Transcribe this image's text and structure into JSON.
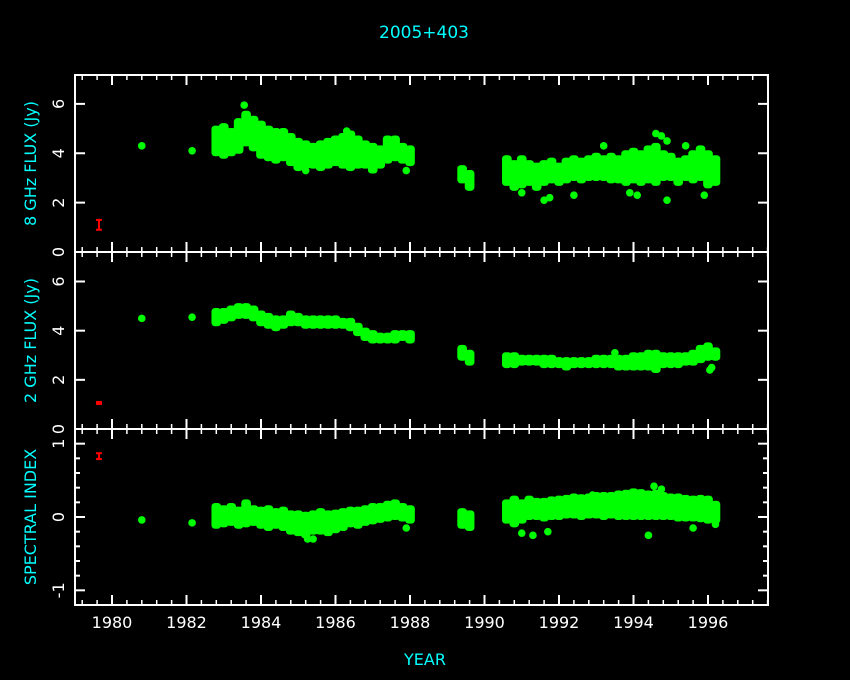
{
  "colors": {
    "background": "#000000",
    "axes": "#ffffff",
    "labels": "#00ffff",
    "data": "#00ff00",
    "error_bar": "#ff0000"
  },
  "chart_data": [
    {
      "type": "scatter",
      "title": "2005+403",
      "xlabel": "YEAR",
      "ylabel": "8 GHz FLUX (Jy)",
      "xlim": [
        1979.0,
        1997.6
      ],
      "ylim": [
        0,
        7.17
      ],
      "xticks": [
        "1980",
        "1982",
        "1984",
        "1986",
        "1988",
        "1990",
        "1992",
        "1994",
        "1996"
      ],
      "yticks": [
        "0",
        "2",
        "4",
        "6"
      ],
      "error_bar": {
        "x": 1979.65,
        "y": 1.1,
        "err": 0.2
      },
      "points": [
        [
          1980.8,
          4.3
        ],
        [
          1982.15,
          4.1
        ],
        [
          1983.55,
          5.95
        ],
        [
          1986.3,
          4.9
        ],
        [
          1987.9,
          3.3
        ],
        [
          1985.2,
          3.3
        ],
        [
          1991.0,
          2.4
        ],
        [
          1991.6,
          2.1
        ],
        [
          1991.75,
          2.2
        ],
        [
          1992.4,
          2.3
        ],
        [
          1993.2,
          4.3
        ],
        [
          1994.1,
          2.3
        ],
        [
          1994.6,
          4.8
        ],
        [
          1994.75,
          4.7
        ],
        [
          1994.9,
          4.5
        ],
        [
          1995.4,
          4.3
        ],
        [
          1995.9,
          2.3
        ],
        [
          1993.9,
          2.4
        ],
        [
          1994.9,
          2.1
        ]
      ],
      "bands": [
        [
          1982.8,
          4.0,
          5.0
        ],
        [
          1983.0,
          3.9,
          5.1
        ],
        [
          1983.2,
          4.0,
          4.9
        ],
        [
          1983.4,
          4.1,
          5.3
        ],
        [
          1983.6,
          4.4,
          5.6
        ],
        [
          1983.8,
          4.2,
          5.4
        ],
        [
          1984.0,
          3.9,
          5.2
        ],
        [
          1984.2,
          3.8,
          5.0
        ],
        [
          1984.4,
          3.7,
          4.9
        ],
        [
          1984.6,
          3.8,
          4.9
        ],
        [
          1984.8,
          3.6,
          4.7
        ],
        [
          1985.0,
          3.4,
          4.5
        ],
        [
          1985.2,
          3.5,
          4.4
        ],
        [
          1985.4,
          3.5,
          4.3
        ],
        [
          1985.6,
          3.4,
          4.4
        ],
        [
          1985.8,
          3.5,
          4.5
        ],
        [
          1986.0,
          3.6,
          4.6
        ],
        [
          1986.2,
          3.5,
          4.7
        ],
        [
          1986.4,
          3.4,
          4.8
        ],
        [
          1986.6,
          3.5,
          4.6
        ],
        [
          1986.8,
          3.5,
          4.4
        ],
        [
          1987.0,
          3.3,
          4.3
        ],
        [
          1987.2,
          3.5,
          4.2
        ],
        [
          1987.4,
          3.7,
          4.6
        ],
        [
          1987.6,
          3.8,
          4.6
        ],
        [
          1987.8,
          3.7,
          4.3
        ],
        [
          1988.0,
          3.6,
          4.2
        ],
        [
          1989.4,
          2.9,
          3.4
        ],
        [
          1989.6,
          2.6,
          3.2
        ],
        [
          1990.6,
          2.8,
          3.8
        ],
        [
          1990.8,
          2.6,
          3.6
        ],
        [
          1991.0,
          2.7,
          3.8
        ],
        [
          1991.2,
          2.8,
          3.6
        ],
        [
          1991.4,
          2.6,
          3.5
        ],
        [
          1991.6,
          2.8,
          3.6
        ],
        [
          1991.8,
          2.9,
          3.7
        ],
        [
          1992.0,
          2.8,
          3.5
        ],
        [
          1992.2,
          2.9,
          3.7
        ],
        [
          1992.4,
          3.0,
          3.8
        ],
        [
          1992.6,
          2.9,
          3.7
        ],
        [
          1992.8,
          3.0,
          3.8
        ],
        [
          1993.0,
          3.0,
          3.9
        ],
        [
          1993.2,
          3.0,
          3.8
        ],
        [
          1993.4,
          2.9,
          3.9
        ],
        [
          1993.6,
          2.9,
          3.8
        ],
        [
          1993.8,
          2.8,
          4.0
        ],
        [
          1994.0,
          2.9,
          4.1
        ],
        [
          1994.2,
          2.8,
          4.0
        ],
        [
          1994.4,
          2.9,
          4.2
        ],
        [
          1994.6,
          2.8,
          4.3
        ],
        [
          1994.8,
          3.0,
          4.0
        ],
        [
          1995.0,
          3.0,
          3.9
        ],
        [
          1995.2,
          2.8,
          3.7
        ],
        [
          1995.4,
          3.0,
          3.8
        ],
        [
          1995.6,
          2.9,
          4.0
        ],
        [
          1995.8,
          3.0,
          4.2
        ],
        [
          1996.0,
          2.7,
          4.0
        ],
        [
          1996.2,
          2.8,
          3.8
        ]
      ]
    },
    {
      "type": "scatter",
      "ylabel": "2 GHz FLUX (Jy)",
      "xlim": [
        1979.0,
        1997.6
      ],
      "ylim": [
        0,
        7.2
      ],
      "yticks": [
        "0",
        "2",
        "4",
        "6"
      ],
      "error_bar": {
        "x": 1979.65,
        "y": 1.06,
        "err": 0.04
      },
      "points": [
        [
          1980.8,
          4.5
        ],
        [
          1982.15,
          4.55
        ],
        [
          1993.5,
          3.1
        ],
        [
          1996.1,
          2.5
        ],
        [
          1996.05,
          2.4
        ]
      ],
      "bands": [
        [
          1982.8,
          4.3,
          4.8
        ],
        [
          1983.0,
          4.4,
          4.8
        ],
        [
          1983.2,
          4.5,
          4.9
        ],
        [
          1983.4,
          4.6,
          5.0
        ],
        [
          1983.6,
          4.6,
          5.0
        ],
        [
          1983.8,
          4.5,
          4.9
        ],
        [
          1984.0,
          4.3,
          4.7
        ],
        [
          1984.2,
          4.2,
          4.6
        ],
        [
          1984.4,
          4.1,
          4.5
        ],
        [
          1984.6,
          4.2,
          4.5
        ],
        [
          1984.8,
          4.3,
          4.7
        ],
        [
          1985.0,
          4.3,
          4.6
        ],
        [
          1985.2,
          4.2,
          4.5
        ],
        [
          1985.4,
          4.2,
          4.5
        ],
        [
          1985.6,
          4.2,
          4.5
        ],
        [
          1985.8,
          4.2,
          4.5
        ],
        [
          1986.0,
          4.2,
          4.5
        ],
        [
          1986.2,
          4.2,
          4.4
        ],
        [
          1986.4,
          4.1,
          4.4
        ],
        [
          1986.6,
          3.9,
          4.2
        ],
        [
          1986.8,
          3.7,
          4.0
        ],
        [
          1987.0,
          3.6,
          3.9
        ],
        [
          1987.2,
          3.6,
          3.8
        ],
        [
          1987.4,
          3.6,
          3.8
        ],
        [
          1987.6,
          3.6,
          3.9
        ],
        [
          1987.8,
          3.7,
          3.9
        ],
        [
          1988.0,
          3.6,
          3.9
        ],
        [
          1989.4,
          2.9,
          3.3
        ],
        [
          1989.6,
          2.7,
          3.1
        ],
        [
          1990.6,
          2.6,
          3.0
        ],
        [
          1990.8,
          2.6,
          3.0
        ],
        [
          1991.0,
          2.7,
          2.9
        ],
        [
          1991.2,
          2.7,
          2.9
        ],
        [
          1991.4,
          2.7,
          2.9
        ],
        [
          1991.6,
          2.6,
          2.9
        ],
        [
          1991.8,
          2.6,
          2.9
        ],
        [
          1992.0,
          2.6,
          2.8
        ],
        [
          1992.2,
          2.5,
          2.8
        ],
        [
          1992.4,
          2.6,
          2.8
        ],
        [
          1992.6,
          2.6,
          2.8
        ],
        [
          1992.8,
          2.6,
          2.8
        ],
        [
          1993.0,
          2.6,
          2.9
        ],
        [
          1993.2,
          2.6,
          2.9
        ],
        [
          1993.4,
          2.6,
          2.9
        ],
        [
          1993.6,
          2.5,
          2.9
        ],
        [
          1993.8,
          2.5,
          2.9
        ],
        [
          1994.0,
          2.5,
          3.0
        ],
        [
          1994.2,
          2.5,
          3.0
        ],
        [
          1994.4,
          2.5,
          3.1
        ],
        [
          1994.6,
          2.4,
          3.1
        ],
        [
          1994.8,
          2.6,
          3.0
        ],
        [
          1995.0,
          2.6,
          3.0
        ],
        [
          1995.2,
          2.6,
          3.0
        ],
        [
          1995.4,
          2.7,
          3.0
        ],
        [
          1995.6,
          2.7,
          3.1
        ],
        [
          1995.8,
          2.8,
          3.3
        ],
        [
          1996.0,
          2.9,
          3.4
        ],
        [
          1996.2,
          2.9,
          3.2
        ]
      ]
    },
    {
      "type": "scatter",
      "ylabel": "SPECTRAL  INDEX",
      "xlim": [
        1979.0,
        1997.6
      ],
      "ylim": [
        -1.2,
        1.2
      ],
      "yticks": [
        "-1",
        "0",
        "1"
      ],
      "error_bar": {
        "x": 1979.65,
        "y": 0.83,
        "err": 0.04
      },
      "points": [
        [
          1980.8,
          -0.04
        ],
        [
          1982.15,
          -0.08
        ],
        [
          1985.25,
          -0.3
        ],
        [
          1985.4,
          -0.3
        ],
        [
          1987.9,
          -0.15
        ],
        [
          1991.0,
          -0.22
        ],
        [
          1991.3,
          -0.25
        ],
        [
          1991.7,
          -0.2
        ],
        [
          1994.4,
          -0.25
        ],
        [
          1994.55,
          0.42
        ],
        [
          1994.75,
          0.38
        ],
        [
          1992.9,
          0.3
        ],
        [
          1995.6,
          -0.15
        ],
        [
          1996.2,
          -0.1
        ]
      ],
      "bands": [
        [
          1982.8,
          -0.12,
          0.15
        ],
        [
          1983.0,
          -0.1,
          0.12
        ],
        [
          1983.2,
          -0.08,
          0.15
        ],
        [
          1983.4,
          -0.12,
          0.1
        ],
        [
          1983.6,
          -0.1,
          0.2
        ],
        [
          1983.8,
          -0.08,
          0.12
        ],
        [
          1984.0,
          -0.12,
          0.1
        ],
        [
          1984.2,
          -0.15,
          0.12
        ],
        [
          1984.4,
          -0.12,
          0.08
        ],
        [
          1984.6,
          -0.15,
          0.1
        ],
        [
          1984.8,
          -0.2,
          0.05
        ],
        [
          1985.0,
          -0.22,
          0.05
        ],
        [
          1985.2,
          -0.25,
          0.03
        ],
        [
          1985.4,
          -0.2,
          0.05
        ],
        [
          1985.6,
          -0.2,
          0.08
        ],
        [
          1985.8,
          -0.22,
          0.05
        ],
        [
          1986.0,
          -0.18,
          0.06
        ],
        [
          1986.2,
          -0.15,
          0.08
        ],
        [
          1986.4,
          -0.1,
          0.1
        ],
        [
          1986.6,
          -0.12,
          0.1
        ],
        [
          1986.8,
          -0.08,
          0.12
        ],
        [
          1987.0,
          -0.06,
          0.15
        ],
        [
          1987.2,
          -0.04,
          0.15
        ],
        [
          1987.4,
          -0.02,
          0.18
        ],
        [
          1987.6,
          0.0,
          0.2
        ],
        [
          1987.8,
          -0.02,
          0.15
        ],
        [
          1988.0,
          -0.05,
          0.12
        ],
        [
          1989.4,
          -0.12,
          0.08
        ],
        [
          1989.6,
          -0.15,
          0.05
        ],
        [
          1990.6,
          -0.05,
          0.2
        ],
        [
          1990.8,
          -0.1,
          0.25
        ],
        [
          1991.0,
          -0.05,
          0.2
        ],
        [
          1991.2,
          0.0,
          0.25
        ],
        [
          1991.4,
          0.0,
          0.22
        ],
        [
          1991.6,
          -0.02,
          0.22
        ],
        [
          1991.8,
          0.0,
          0.24
        ],
        [
          1992.0,
          0.0,
          0.25
        ],
        [
          1992.2,
          0.02,
          0.26
        ],
        [
          1992.4,
          0.02,
          0.28
        ],
        [
          1992.6,
          0.0,
          0.27
        ],
        [
          1992.8,
          0.02,
          0.28
        ],
        [
          1993.0,
          0.02,
          0.3
        ],
        [
          1993.2,
          0.0,
          0.3
        ],
        [
          1993.4,
          0.02,
          0.3
        ],
        [
          1993.6,
          0.0,
          0.32
        ],
        [
          1993.8,
          0.0,
          0.33
        ],
        [
          1994.0,
          0.0,
          0.35
        ],
        [
          1994.2,
          0.0,
          0.34
        ],
        [
          1994.4,
          0.0,
          0.32
        ],
        [
          1994.6,
          0.0,
          0.33
        ],
        [
          1994.8,
          0.0,
          0.3
        ],
        [
          1995.0,
          0.0,
          0.28
        ],
        [
          1995.2,
          -0.02,
          0.28
        ],
        [
          1995.4,
          -0.02,
          0.26
        ],
        [
          1995.6,
          -0.02,
          0.25
        ],
        [
          1995.8,
          -0.03,
          0.26
        ],
        [
          1996.0,
          -0.05,
          0.25
        ],
        [
          1996.2,
          -0.05,
          0.18
        ]
      ]
    }
  ]
}
